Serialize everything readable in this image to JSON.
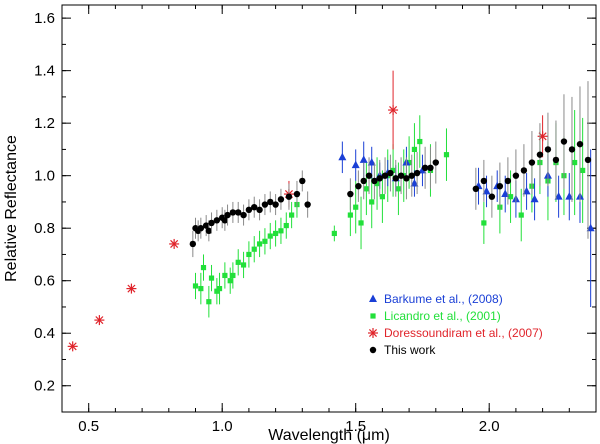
{
  "chart_data": {
    "type": "scatter",
    "title": "",
    "xlabel": "Wavelength (μm)",
    "ylabel": "Relative Reflectance",
    "xlim": [
      0.4,
      2.4
    ],
    "ylim": [
      0.1,
      1.65
    ],
    "x_ticks": [
      0.5,
      1.0,
      1.5,
      2.0
    ],
    "x_tick_labels": [
      "0.5",
      "1.0",
      "1.5",
      "2.0"
    ],
    "y_ticks": [
      0.2,
      0.4,
      0.6,
      0.8,
      1.0,
      1.2,
      1.4,
      1.6
    ],
    "y_tick_labels": [
      "0.2",
      "0.4",
      "0.6",
      "0.8",
      "1.0",
      "1.2",
      "1.4",
      "1.6"
    ],
    "grid": false,
    "legend_position": "bottom-right",
    "colors": {
      "barkume": "#1a3fd6",
      "licandro": "#22e03a",
      "doressoundiram": "#e0242b",
      "this_work": "#000000",
      "errorbar_black": "#8a8a8a"
    },
    "series": [
      {
        "name": "Barkume et al., (2008)",
        "marker": "triangle",
        "color_key": "barkume",
        "points": [
          [
            1.45,
            1.07,
            0.06
          ],
          [
            1.5,
            1.04,
            0.06
          ],
          [
            1.53,
            1.06,
            0.07
          ],
          [
            1.56,
            1.05,
            0.06
          ],
          [
            1.59,
            1.0,
            0.05
          ],
          [
            1.62,
            1.01,
            0.05
          ],
          [
            1.65,
            0.99,
            0.05
          ],
          [
            1.69,
            1.05,
            0.06
          ],
          [
            1.72,
            0.97,
            0.05
          ],
          [
            1.75,
            1.02,
            0.06
          ],
          [
            1.96,
            0.96,
            0.07
          ],
          [
            1.99,
            0.94,
            0.06
          ],
          [
            2.03,
            0.96,
            0.06
          ],
          [
            2.06,
            0.93,
            0.07
          ],
          [
            2.1,
            0.91,
            0.07
          ],
          [
            2.14,
            0.94,
            0.07
          ],
          [
            2.17,
            0.91,
            0.08
          ],
          [
            2.22,
            1.0,
            0.08
          ],
          [
            2.26,
            0.92,
            0.08
          ],
          [
            2.3,
            0.92,
            0.09
          ],
          [
            2.34,
            0.92,
            0.1
          ],
          [
            2.38,
            0.8,
            0.3
          ]
        ]
      },
      {
        "name": "Licandro et al., (2001)",
        "marker": "square",
        "color_key": "licandro",
        "points": [
          [
            0.9,
            0.58,
            0.05
          ],
          [
            0.92,
            0.57,
            0.06
          ],
          [
            0.93,
            0.65,
            0.05
          ],
          [
            0.95,
            0.52,
            0.06
          ],
          [
            0.96,
            0.61,
            0.05
          ],
          [
            0.98,
            0.56,
            0.05
          ],
          [
            0.99,
            0.57,
            0.06
          ],
          [
            1.01,
            0.62,
            0.05
          ],
          [
            1.03,
            0.6,
            0.05
          ],
          [
            1.04,
            0.62,
            0.05
          ],
          [
            1.06,
            0.67,
            0.05
          ],
          [
            1.08,
            0.66,
            0.05
          ],
          [
            1.1,
            0.7,
            0.05
          ],
          [
            1.12,
            0.72,
            0.05
          ],
          [
            1.14,
            0.74,
            0.05
          ],
          [
            1.16,
            0.75,
            0.05
          ],
          [
            1.18,
            0.77,
            0.05
          ],
          [
            1.2,
            0.78,
            0.05
          ],
          [
            1.22,
            0.79,
            0.05
          ],
          [
            1.24,
            0.81,
            0.05
          ],
          [
            1.26,
            0.85,
            0.05
          ],
          [
            1.28,
            0.89,
            0.05
          ],
          [
            1.42,
            0.78,
            0.03
          ],
          [
            1.48,
            0.85,
            0.08
          ],
          [
            1.5,
            0.88,
            0.1
          ],
          [
            1.52,
            0.82,
            0.1
          ],
          [
            1.54,
            0.95,
            0.1
          ],
          [
            1.56,
            0.9,
            0.1
          ],
          [
            1.58,
            0.97,
            0.1
          ],
          [
            1.6,
            0.92,
            0.1
          ],
          [
            1.62,
            1.0,
            0.1
          ],
          [
            1.64,
            1.02,
            0.1
          ],
          [
            1.66,
            0.95,
            0.1
          ],
          [
            1.68,
            1.0,
            0.1
          ],
          [
            1.7,
            1.05,
            0.1
          ],
          [
            1.72,
            1.1,
            0.1
          ],
          [
            1.74,
            1.13,
            0.1
          ],
          [
            1.78,
            1.02,
            0.1
          ],
          [
            1.84,
            1.08,
            0.1
          ],
          [
            1.98,
            0.82,
            0.08
          ],
          [
            2.04,
            0.88,
            0.1
          ],
          [
            2.08,
            0.92,
            0.1
          ],
          [
            2.12,
            0.85,
            0.1
          ],
          [
            2.16,
            0.96,
            0.1
          ],
          [
            2.19,
            1.05,
            0.12
          ],
          [
            2.22,
            0.98,
            0.15
          ],
          [
            2.25,
            1.05,
            0.15
          ],
          [
            2.28,
            1.0,
            0.15
          ],
          [
            2.32,
            1.05,
            0.2
          ],
          [
            2.35,
            1.02,
            0.2
          ]
        ]
      },
      {
        "name": "Doressoundiram et al., (2007)",
        "marker": "asterisk",
        "color_key": "doressoundiram",
        "points": [
          [
            0.44,
            0.35,
            0.0
          ],
          [
            0.54,
            0.45,
            0.0
          ],
          [
            0.66,
            0.57,
            0.0
          ],
          [
            0.82,
            0.74,
            0.0
          ],
          [
            1.25,
            0.93,
            0.05
          ],
          [
            1.64,
            1.25,
            0.15
          ],
          [
            2.2,
            1.15,
            0.08
          ]
        ]
      },
      {
        "name": "This work",
        "marker": "circle",
        "color_key": "this_work",
        "points": [
          [
            0.89,
            0.74,
            0.05
          ],
          [
            0.9,
            0.8,
            0.04
          ],
          [
            0.91,
            0.79,
            0.04
          ],
          [
            0.92,
            0.8,
            0.04
          ],
          [
            0.94,
            0.81,
            0.04
          ],
          [
            0.95,
            0.79,
            0.04
          ],
          [
            0.96,
            0.82,
            0.04
          ],
          [
            0.98,
            0.83,
            0.04
          ],
          [
            1.0,
            0.84,
            0.04
          ],
          [
            1.01,
            0.83,
            0.04
          ],
          [
            1.02,
            0.85,
            0.04
          ],
          [
            1.04,
            0.86,
            0.04
          ],
          [
            1.06,
            0.86,
            0.04
          ],
          [
            1.08,
            0.85,
            0.04
          ],
          [
            1.1,
            0.87,
            0.04
          ],
          [
            1.12,
            0.88,
            0.04
          ],
          [
            1.14,
            0.87,
            0.04
          ],
          [
            1.16,
            0.89,
            0.04
          ],
          [
            1.18,
            0.9,
            0.04
          ],
          [
            1.2,
            0.89,
            0.04
          ],
          [
            1.22,
            0.91,
            0.04
          ],
          [
            1.25,
            0.92,
            0.05
          ],
          [
            1.28,
            0.93,
            0.05
          ],
          [
            1.3,
            0.98,
            0.04
          ],
          [
            1.32,
            0.89,
            0.05
          ],
          [
            1.48,
            0.93,
            0.06
          ],
          [
            1.51,
            0.96,
            0.06
          ],
          [
            1.53,
            0.98,
            0.07
          ],
          [
            1.55,
            1.0,
            0.07
          ],
          [
            1.57,
            0.98,
            0.07
          ],
          [
            1.59,
            0.99,
            0.07
          ],
          [
            1.61,
            1.0,
            0.07
          ],
          [
            1.63,
            1.01,
            0.07
          ],
          [
            1.65,
            0.99,
            0.07
          ],
          [
            1.67,
            1.0,
            0.07
          ],
          [
            1.69,
            0.99,
            0.08
          ],
          [
            1.71,
            1.0,
            0.08
          ],
          [
            1.73,
            1.01,
            0.08
          ],
          [
            1.76,
            1.03,
            0.08
          ],
          [
            1.78,
            1.03,
            0.08
          ],
          [
            1.8,
            1.05,
            0.08
          ],
          [
            1.95,
            0.95,
            0.08
          ],
          [
            1.98,
            0.98,
            0.08
          ],
          [
            2.01,
            0.92,
            0.08
          ],
          [
            2.04,
            0.96,
            0.09
          ],
          [
            2.07,
            0.98,
            0.09
          ],
          [
            2.1,
            1.0,
            0.1
          ],
          [
            2.13,
            1.02,
            0.1
          ],
          [
            2.16,
            1.05,
            0.12
          ],
          [
            2.19,
            1.08,
            0.12
          ],
          [
            2.22,
            1.1,
            0.14
          ],
          [
            2.25,
            1.06,
            0.15
          ],
          [
            2.28,
            1.13,
            0.18
          ],
          [
            2.31,
            1.1,
            0.2
          ],
          [
            2.34,
            1.12,
            0.22
          ],
          [
            2.37,
            1.06,
            0.3
          ]
        ]
      }
    ]
  }
}
